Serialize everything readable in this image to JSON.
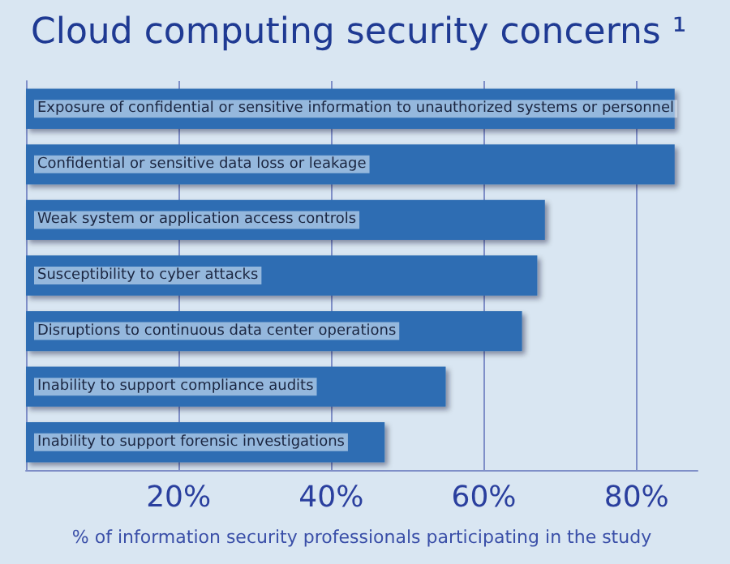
{
  "chart_data": {
    "type": "bar",
    "orientation": "horizontal",
    "title": "Cloud computing security concerns ¹",
    "xlabel": "% of information security professionals participating in the study",
    "categories": [
      "Exposure of confidential or sensitive information to unauthorized systems or personnel",
      "Confidential or sensitive data loss or leakage",
      "Weak system or application access controls",
      "Susceptibility to cyber attacks",
      "Disruptions to continuous data center operations",
      "Inability to support compliance audits",
      "Inability to support forensic investigations"
    ],
    "values": [
      85,
      85,
      68,
      67,
      65,
      55,
      47
    ],
    "color": "#2f6db3",
    "xlim": [
      0,
      88
    ],
    "xticks": [
      {
        "value": 20,
        "label": "20%"
      },
      {
        "value": 40,
        "label": "40%"
      },
      {
        "value": 60,
        "label": "60%"
      },
      {
        "value": 80,
        "label": "80%"
      }
    ],
    "grid": "x"
  }
}
